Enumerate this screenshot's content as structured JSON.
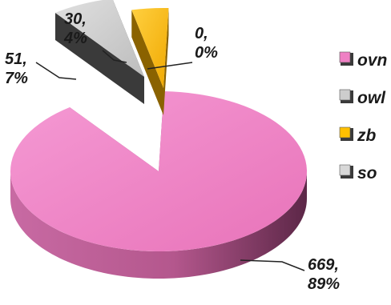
{
  "chart_data": {
    "type": "pie",
    "series": [
      {
        "name": "ovn",
        "value": 669,
        "percent": "89%",
        "label": "669,\n89%",
        "color": "#ef80c4"
      },
      {
        "name": "owl",
        "value": 51,
        "percent": "7%",
        "label": "51,\n7%",
        "color": "#cdcdcd"
      },
      {
        "name": "zb",
        "value": 30,
        "percent": "4%",
        "label": "30,\n4%",
        "color": "#ffc000"
      },
      {
        "name": "so",
        "value": 0,
        "percent": "0%",
        "label": "0,\n0%",
        "color": "#d8d8d8"
      }
    ],
    "legend_position": "right",
    "style": "3d-exploded"
  }
}
